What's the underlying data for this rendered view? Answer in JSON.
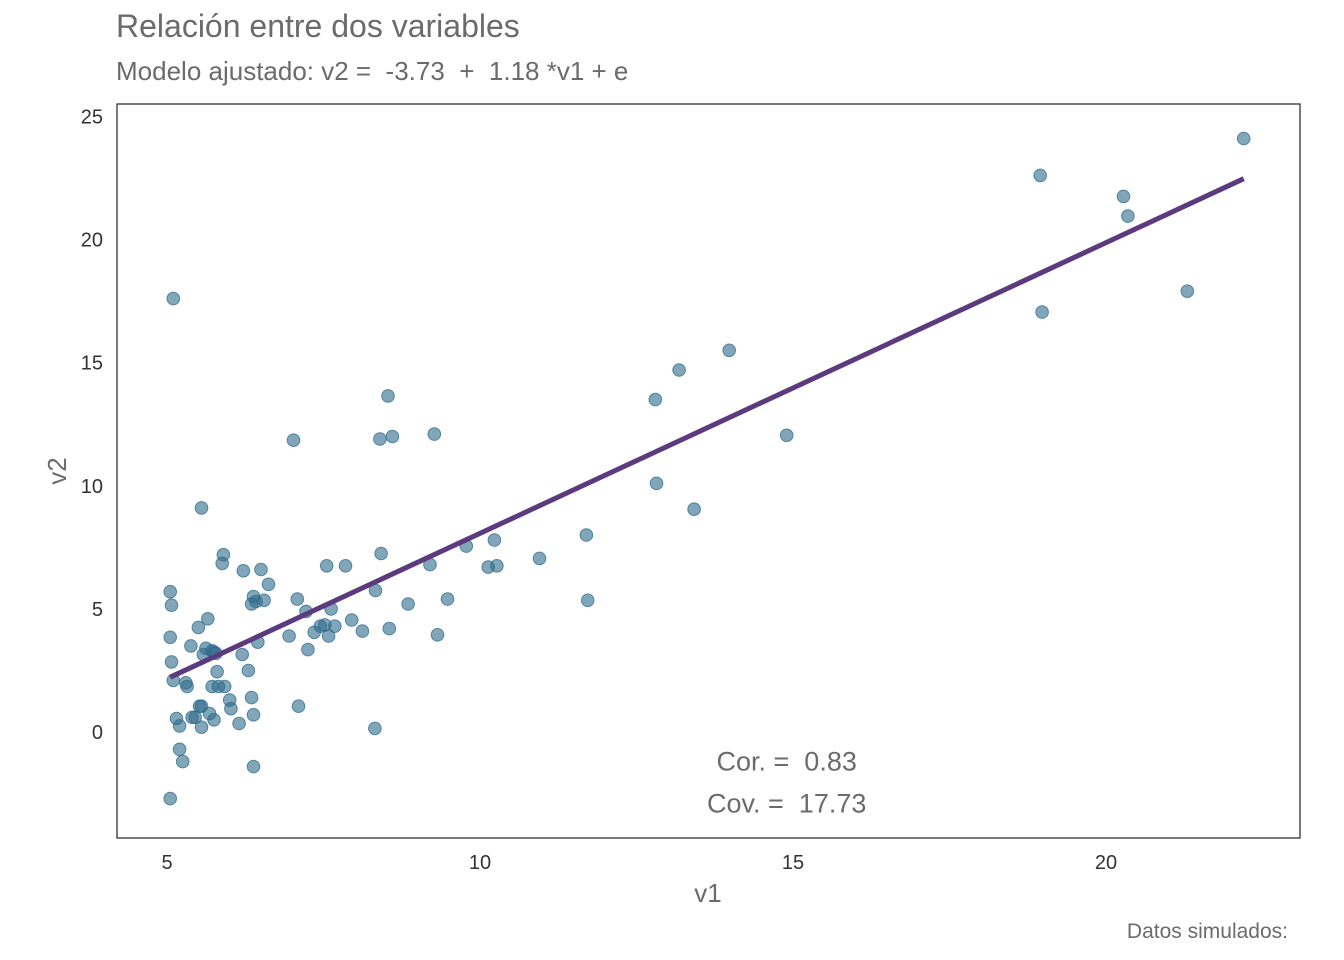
{
  "chart_data": {
    "type": "scatter",
    "title": "Relación entre dos variables",
    "subtitle": "Modelo ajustado: v2 =  -3.73  +  1.18 *v1 + e",
    "xlabel": "v1",
    "ylabel": "v2",
    "caption": "Datos simulados:",
    "xlim": [
      4.2,
      23.1
    ],
    "ylim": [
      -4.3,
      25.5
    ],
    "xticks": [
      5,
      10,
      15,
      20
    ],
    "yticks": [
      0,
      5,
      10,
      15,
      20,
      25
    ],
    "grid": false,
    "point_color": "#2e6b8a",
    "line_color": "#5b3a7e",
    "fit_line": {
      "intercept": -3.73,
      "slope": 1.18,
      "x_range": [
        5.05,
        22.2
      ]
    },
    "annotations": [
      {
        "text": "Cor. =  0.83",
        "x": 14.9,
        "y": -1.2
      },
      {
        "text": "Cov. =  17.73",
        "x": 14.9,
        "y": -2.9
      }
    ],
    "points": [
      [
        5.1,
        17.6
      ],
      [
        5.55,
        9.1
      ],
      [
        5.05,
        5.7
      ],
      [
        5.07,
        5.15
      ],
      [
        5.05,
        3.85
      ],
      [
        5.07,
        2.85
      ],
      [
        5.1,
        2.1
      ],
      [
        5.15,
        0.55
      ],
      [
        5.2,
        0.25
      ],
      [
        5.2,
        -0.7
      ],
      [
        5.25,
        -1.2
      ],
      [
        5.05,
        -2.7
      ],
      [
        5.3,
        2.0
      ],
      [
        5.32,
        1.85
      ],
      [
        5.38,
        3.5
      ],
      [
        5.4,
        0.6
      ],
      [
        5.45,
        0.6
      ],
      [
        5.5,
        4.25
      ],
      [
        5.52,
        1.05
      ],
      [
        5.55,
        1.05
      ],
      [
        5.55,
        0.2
      ],
      [
        5.58,
        3.15
      ],
      [
        5.62,
        3.4
      ],
      [
        5.65,
        4.6
      ],
      [
        5.68,
        0.75
      ],
      [
        5.72,
        1.85
      ],
      [
        5.72,
        3.3
      ],
      [
        5.75,
        3.25
      ],
      [
        5.75,
        0.5
      ],
      [
        5.78,
        3.2
      ],
      [
        5.8,
        2.45
      ],
      [
        5.82,
        1.85
      ],
      [
        5.88,
        6.85
      ],
      [
        5.9,
        7.2
      ],
      [
        5.92,
        1.85
      ],
      [
        6.0,
        1.3
      ],
      [
        6.02,
        0.95
      ],
      [
        6.15,
        0.35
      ],
      [
        6.2,
        3.15
      ],
      [
        6.22,
        6.55
      ],
      [
        6.3,
        2.5
      ],
      [
        6.35,
        5.2
      ],
      [
        6.35,
        1.4
      ],
      [
        6.38,
        5.5
      ],
      [
        6.38,
        0.7
      ],
      [
        6.38,
        -1.4
      ],
      [
        6.42,
        5.3
      ],
      [
        6.45,
        3.65
      ],
      [
        6.5,
        6.6
      ],
      [
        6.55,
        5.35
      ],
      [
        6.62,
        6.0
      ],
      [
        6.95,
        3.9
      ],
      [
        7.02,
        11.85
      ],
      [
        7.08,
        5.4
      ],
      [
        7.1,
        1.05
      ],
      [
        7.22,
        4.9
      ],
      [
        7.25,
        3.35
      ],
      [
        7.35,
        4.05
      ],
      [
        7.45,
        4.3
      ],
      [
        7.52,
        4.35
      ],
      [
        7.55,
        6.75
      ],
      [
        7.58,
        3.9
      ],
      [
        7.62,
        5.0
      ],
      [
        7.68,
        4.3
      ],
      [
        7.85,
        6.75
      ],
      [
        7.95,
        4.55
      ],
      [
        8.12,
        4.1
      ],
      [
        8.32,
        0.15
      ],
      [
        8.33,
        5.75
      ],
      [
        8.4,
        11.9
      ],
      [
        8.42,
        7.25
      ],
      [
        8.53,
        13.65
      ],
      [
        8.55,
        4.2
      ],
      [
        8.6,
        12.0
      ],
      [
        8.85,
        5.2
      ],
      [
        9.2,
        6.8
      ],
      [
        9.27,
        12.1
      ],
      [
        9.32,
        3.95
      ],
      [
        9.48,
        5.4
      ],
      [
        9.78,
        7.55
      ],
      [
        10.13,
        6.7
      ],
      [
        10.23,
        7.8
      ],
      [
        10.27,
        6.75
      ],
      [
        10.95,
        7.05
      ],
      [
        11.7,
        8.0
      ],
      [
        11.72,
        5.35
      ],
      [
        12.8,
        13.5
      ],
      [
        12.82,
        10.1
      ],
      [
        13.18,
        14.7
      ],
      [
        13.42,
        9.05
      ],
      [
        13.98,
        15.5
      ],
      [
        14.9,
        12.05
      ],
      [
        18.95,
        22.6
      ],
      [
        18.98,
        17.05
      ],
      [
        20.28,
        21.75
      ],
      [
        20.35,
        20.95
      ],
      [
        21.3,
        17.9
      ],
      [
        22.2,
        24.1
      ]
    ]
  }
}
